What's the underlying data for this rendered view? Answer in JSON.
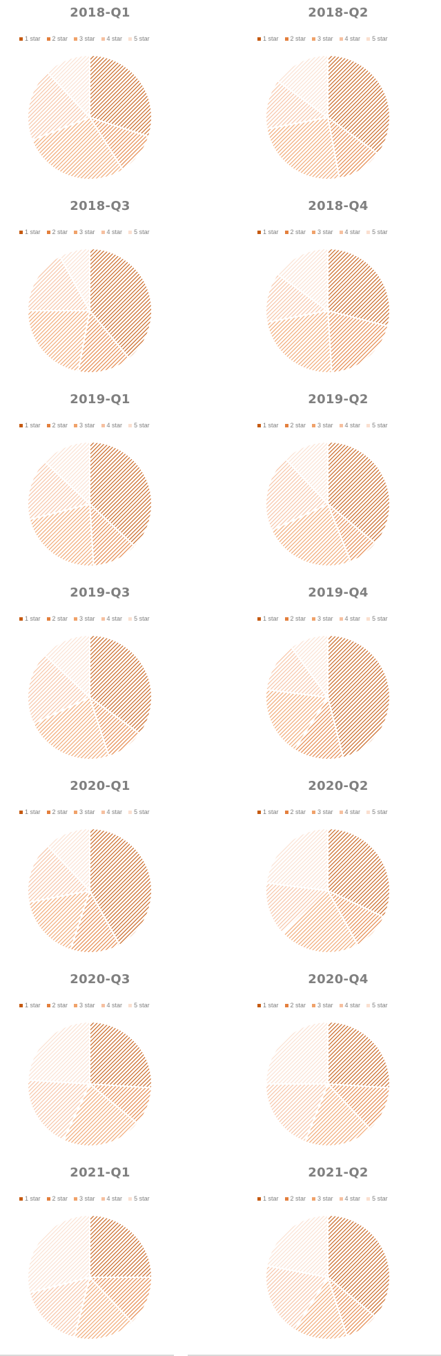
{
  "legend_labels": [
    "1 star",
    "2 star",
    "3 star",
    "4 star",
    "5 star"
  ],
  "colors": [
    "#c55a11",
    "#e37f3d",
    "#f0a26a",
    "#f6c0a0",
    "#fadfcf"
  ],
  "chart_data": [
    {
      "type": "pie",
      "title": "2018-Q1",
      "categories": [
        "1 star",
        "2 star",
        "3 star",
        "4 star",
        "5 star"
      ],
      "values": [
        30,
        11,
        28,
        19,
        12
      ]
    },
    {
      "type": "pie",
      "title": "2018-Q2",
      "categories": [
        "1 star",
        "2 star",
        "3 star",
        "4 star",
        "5 star"
      ],
      "values": [
        35,
        12,
        25,
        13,
        15
      ]
    },
    {
      "type": "pie",
      "title": "2018-Q3",
      "categories": [
        "1 star",
        "2 star",
        "3 star",
        "4 star",
        "5 star"
      ],
      "values": [
        39,
        14,
        22,
        17,
        8
      ]
    },
    {
      "type": "pie",
      "title": "2018-Q4",
      "categories": [
        "1 star",
        "2 star",
        "3 star",
        "4 star",
        "5 star"
      ],
      "values": [
        29,
        20,
        23,
        13,
        15
      ]
    },
    {
      "type": "pie",
      "title": "2019-Q1",
      "categories": [
        "1 star",
        "2 star",
        "3 star",
        "4 star",
        "5 star"
      ],
      "values": [
        37,
        12,
        22,
        16,
        13
      ]
    },
    {
      "type": "pie",
      "title": "2019-Q2",
      "categories": [
        "1 star",
        "2 star",
        "3 star",
        "4 star",
        "5 star"
      ],
      "values": [
        36,
        8,
        24,
        20,
        12
      ]
    },
    {
      "type": "pie",
      "title": "2019-Q3",
      "categories": [
        "1 star",
        "2 star",
        "3 star",
        "4 star",
        "5 star"
      ],
      "values": [
        35,
        10,
        23,
        19,
        13
      ]
    },
    {
      "type": "pie",
      "title": "2019-Q4",
      "categories": [
        "1 star",
        "2 star",
        "3 star",
        "4 star",
        "5 star"
      ],
      "values": [
        46,
        13,
        18,
        13,
        10
      ]
    },
    {
      "type": "pie",
      "title": "2020-Q1",
      "categories": [
        "1 star",
        "2 star",
        "3 star",
        "4 star",
        "5 star"
      ],
      "values": [
        42,
        13,
        17,
        16,
        12
      ]
    },
    {
      "type": "pie",
      "title": "2020-Q2",
      "categories": [
        "1 star",
        "2 star",
        "3 star",
        "4 star",
        "5 star"
      ],
      "values": [
        32,
        10,
        21,
        14,
        23
      ]
    },
    {
      "type": "pie",
      "title": "2020-Q3",
      "categories": [
        "1 star",
        "2 star",
        "3 star",
        "4 star",
        "5 star"
      ],
      "values": [
        26,
        10,
        21,
        19,
        24
      ]
    },
    {
      "type": "pie",
      "title": "2020-Q4",
      "categories": [
        "1 star",
        "2 star",
        "3 star",
        "4 star",
        "5 star"
      ],
      "values": [
        26,
        12,
        18,
        19,
        25
      ]
    },
    {
      "type": "pie",
      "title": "2021-Q1",
      "categories": [
        "1 star",
        "2 star",
        "3 star",
        "4 star",
        "5 star"
      ],
      "values": [
        25,
        13,
        16,
        17,
        29
      ]
    },
    {
      "type": "pie",
      "title": "2021-Q2",
      "categories": [
        "1 star",
        "2 star",
        "3 star",
        "4 star",
        "5 star"
      ],
      "values": [
        36,
        9,
        14,
        19,
        22
      ]
    }
  ]
}
